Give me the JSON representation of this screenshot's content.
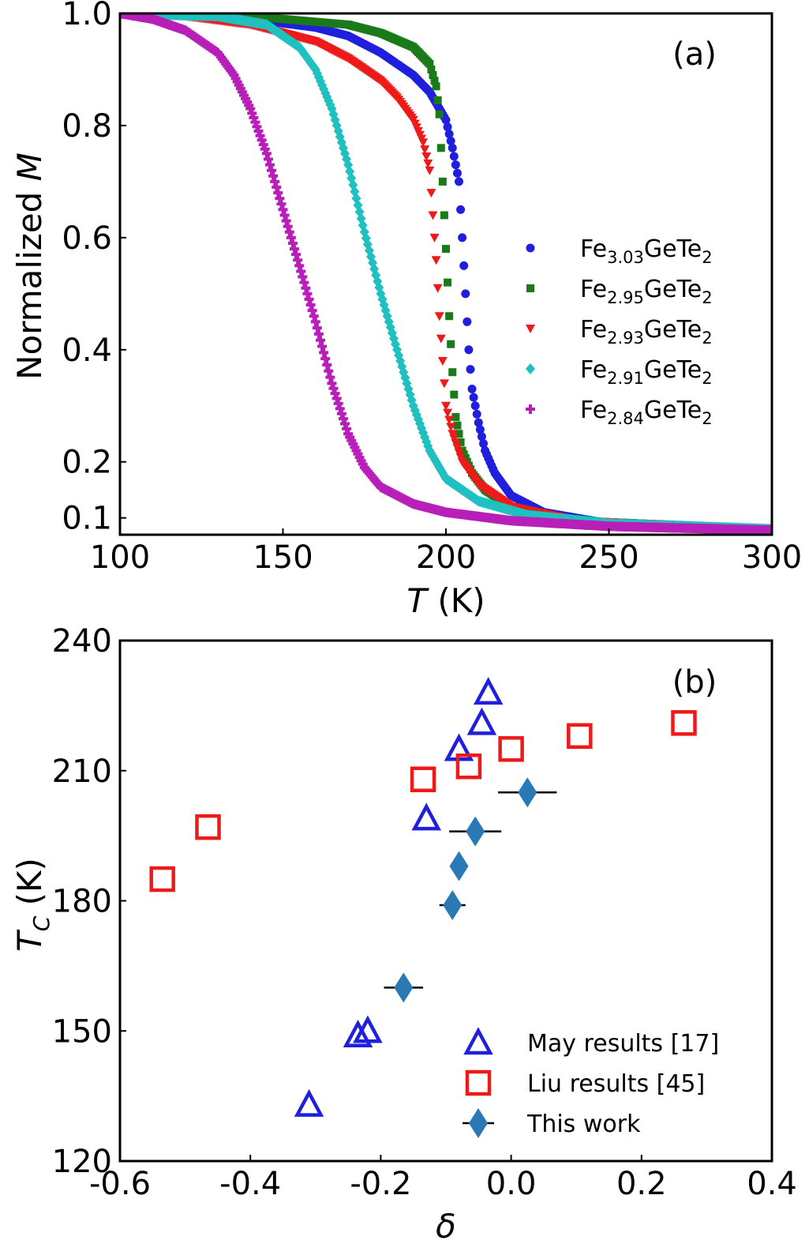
{
  "chart_data": [
    {
      "panel_label": "(a)",
      "type": "scatter",
      "xlabel_var": "T",
      "xlabel_unit": " (K)",
      "ylabel_prefix": "Normalized ",
      "ylabel_var": "M",
      "xlim": [
        100,
        300
      ],
      "ylim": [
        0.07,
        1.0
      ],
      "xticks": [
        100,
        150,
        200,
        250,
        300
      ],
      "yticks": [
        0.1,
        0.2,
        0.4,
        0.6,
        0.8,
        1.0
      ],
      "ytick_labels": [
        "0.1",
        "0.2",
        "0.4",
        "0.6",
        "0.8",
        "1.0"
      ],
      "legend_position": "center-right",
      "series": [
        {
          "name": "Fe3.03GeTe2",
          "label_base": "Fe",
          "label_sub1": "3.03",
          "label_mid": "GeTe",
          "label_sub2": "2",
          "color": "#1f1fdd",
          "marker": "circle",
          "tc": 206,
          "points": [
            [
              100,
              1.0
            ],
            [
              120,
              0.997
            ],
            [
              140,
              0.99
            ],
            [
              160,
              0.975
            ],
            [
              170,
              0.96
            ],
            [
              180,
              0.93
            ],
            [
              190,
              0.89
            ],
            [
              195,
              0.86
            ],
            [
              200,
              0.81
            ],
            [
              202,
              0.76
            ],
            [
              204,
              0.7
            ],
            [
              205,
              0.6
            ],
            [
              206,
              0.5
            ],
            [
              207,
              0.4
            ],
            [
              208,
              0.33
            ],
            [
              210,
              0.27
            ],
            [
              212,
              0.22
            ],
            [
              215,
              0.18
            ],
            [
              220,
              0.14
            ],
            [
              230,
              0.11
            ],
            [
              250,
              0.09
            ],
            [
              300,
              0.08
            ]
          ]
        },
        {
          "name": "Fe2.95GeTe2",
          "label_base": "Fe",
          "label_sub1": "2.95",
          "label_mid": "GeTe",
          "label_sub2": "2",
          "color": "#1a7a1a",
          "marker": "square",
          "tc": 199,
          "points": [
            [
              100,
              1.0
            ],
            [
              130,
              0.997
            ],
            [
              150,
              0.99
            ],
            [
              170,
              0.98
            ],
            [
              180,
              0.965
            ],
            [
              190,
              0.94
            ],
            [
              195,
              0.91
            ],
            [
              197,
              0.87
            ],
            [
              198,
              0.82
            ],
            [
              199,
              0.7
            ],
            [
              200,
              0.58
            ],
            [
              201,
              0.46
            ],
            [
              202,
              0.36
            ],
            [
              203,
              0.28
            ],
            [
              205,
              0.22
            ],
            [
              208,
              0.18
            ],
            [
              212,
              0.15
            ],
            [
              220,
              0.12
            ],
            [
              240,
              0.095
            ],
            [
              300,
              0.08
            ]
          ]
        },
        {
          "name": "Fe2.93GeTe2",
          "label_base": "Fe",
          "label_sub1": "2.93",
          "label_mid": "GeTe",
          "label_sub2": "2",
          "color": "#ee1a1a",
          "marker": "triangle-down",
          "tc": 197,
          "points": [
            [
              100,
              1.0
            ],
            [
              120,
              0.995
            ],
            [
              140,
              0.98
            ],
            [
              160,
              0.95
            ],
            [
              170,
              0.92
            ],
            [
              180,
              0.88
            ],
            [
              185,
              0.85
            ],
            [
              190,
              0.81
            ],
            [
              193,
              0.77
            ],
            [
              195,
              0.72
            ],
            [
              196,
              0.64
            ],
            [
              197,
              0.56
            ],
            [
              198,
              0.46
            ],
            [
              199,
              0.38
            ],
            [
              200,
              0.3
            ],
            [
              202,
              0.25
            ],
            [
              205,
              0.2
            ],
            [
              210,
              0.16
            ],
            [
              220,
              0.12
            ],
            [
              240,
              0.095
            ],
            [
              300,
              0.08
            ]
          ]
        },
        {
          "name": "Fe2.91GeTe2",
          "label_base": "Fe",
          "label_sub1": "2.91",
          "label_mid": "GeTe",
          "label_sub2": "2",
          "color": "#1fc0c0",
          "marker": "diamond",
          "tc": 181,
          "points": [
            [
              100,
              1.0
            ],
            [
              130,
              0.995
            ],
            [
              145,
              0.98
            ],
            [
              155,
              0.94
            ],
            [
              160,
              0.9
            ],
            [
              165,
              0.83
            ],
            [
              170,
              0.73
            ],
            [
              175,
              0.61
            ],
            [
              180,
              0.5
            ],
            [
              185,
              0.4
            ],
            [
              190,
              0.3
            ],
            [
              195,
              0.22
            ],
            [
              200,
              0.17
            ],
            [
              210,
              0.13
            ],
            [
              225,
              0.105
            ],
            [
              250,
              0.09
            ],
            [
              300,
              0.08
            ]
          ]
        },
        {
          "name": "Fe2.84GeTe2",
          "label_base": "Fe",
          "label_sub1": "2.84",
          "label_mid": "GeTe",
          "label_sub2": "2",
          "color": "#b81fb8",
          "marker": "plus",
          "tc": 161,
          "points": [
            [
              100,
              1.0
            ],
            [
              110,
              0.99
            ],
            [
              120,
              0.97
            ],
            [
              130,
              0.93
            ],
            [
              135,
              0.89
            ],
            [
              140,
              0.83
            ],
            [
              145,
              0.75
            ],
            [
              150,
              0.65
            ],
            [
              155,
              0.55
            ],
            [
              160,
              0.45
            ],
            [
              165,
              0.34
            ],
            [
              170,
              0.25
            ],
            [
              175,
              0.19
            ],
            [
              180,
              0.155
            ],
            [
              190,
              0.125
            ],
            [
              200,
              0.11
            ],
            [
              220,
              0.095
            ],
            [
              250,
              0.085
            ],
            [
              300,
              0.078
            ]
          ]
        }
      ]
    },
    {
      "panel_label": "(b)",
      "type": "scatter",
      "xlabel_var": "δ",
      "ylabel_var": "T",
      "ylabel_sub": "C",
      "ylabel_unit": " (K)",
      "xlim": [
        -0.6,
        0.4
      ],
      "ylim": [
        120,
        240
      ],
      "xticks": [
        -0.6,
        -0.4,
        -0.2,
        0.0,
        0.2,
        0.4
      ],
      "xtick_labels": [
        "-0.6",
        "-0.4",
        "-0.2",
        "0.0",
        "0.2",
        "0.4"
      ],
      "yticks": [
        120,
        150,
        180,
        210,
        240
      ],
      "legend_position": "lower-right",
      "series": [
        {
          "name": "May results [17]",
          "color": "#1f1fdd",
          "marker": "triangle-open",
          "points": [
            [
              -0.31,
              133
            ],
            [
              -0.235,
              149
            ],
            [
              -0.22,
              150
            ],
            [
              -0.13,
              199
            ],
            [
              -0.08,
              215
            ],
            [
              -0.045,
              221
            ],
            [
              -0.035,
              228
            ]
          ]
        },
        {
          "name": "Liu results [45]",
          "color": "#ee1a1a",
          "marker": "square-open",
          "points": [
            [
              -0.535,
              185
            ],
            [
              -0.465,
              197
            ],
            [
              -0.135,
              208
            ],
            [
              -0.065,
              211
            ],
            [
              0.0,
              215
            ],
            [
              0.105,
              218
            ],
            [
              0.265,
              221
            ]
          ]
        },
        {
          "name": "This work",
          "color": "#2a79b5",
          "marker": "diamond-filled",
          "errorbar_color": "#000000",
          "points": [
            [
              -0.165,
              160
            ],
            [
              -0.09,
              179
            ],
            [
              -0.08,
              188
            ],
            [
              -0.055,
              196
            ],
            [
              0.025,
              205
            ]
          ],
          "xerr": [
            0.03,
            0.02,
            0.0,
            0.04,
            0.045
          ]
        }
      ]
    }
  ]
}
